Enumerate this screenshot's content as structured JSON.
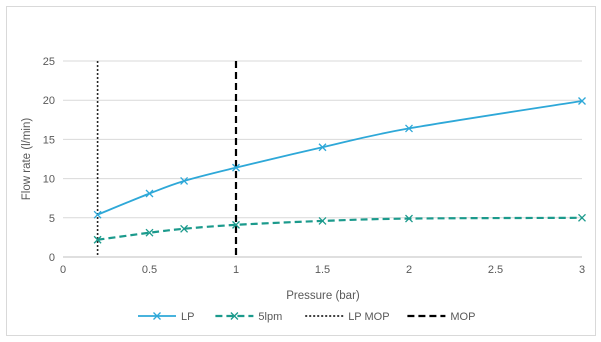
{
  "chart_data": {
    "type": "line",
    "xlabel": "Pressure (bar)",
    "ylabel": "Flow rate (l/min)",
    "xlim": [
      0,
      3
    ],
    "ylim": [
      0,
      25
    ],
    "x_ticks": [
      0,
      0.5,
      1,
      1.5,
      2,
      2.5,
      3
    ],
    "x_tick_labels": [
      "0",
      "0.5",
      "1",
      "1.5",
      "2",
      "2.5",
      "3"
    ],
    "y_ticks": [
      0,
      5,
      10,
      15,
      20,
      25
    ],
    "y_tick_labels": [
      "0",
      "5",
      "10",
      "15",
      "20",
      "25"
    ],
    "grid": "horizontal",
    "legend_position": "bottom",
    "series": [
      {
        "name": "LP",
        "color": "#2ea8d8",
        "line_style": "solid",
        "marker": "x",
        "x": [
          0.2,
          0.5,
          0.7,
          1,
          1.5,
          2,
          3
        ],
        "y": [
          5.4,
          8.1,
          9.7,
          11.4,
          14.0,
          16.4,
          19.9
        ]
      },
      {
        "name": "5lpm",
        "color": "#1b9a8c",
        "line_style": "dashed",
        "marker": "x",
        "x": [
          0.2,
          0.5,
          0.7,
          1,
          1.5,
          2,
          3
        ],
        "y": [
          2.2,
          3.1,
          3.6,
          4.1,
          4.6,
          4.9,
          5.0
        ]
      }
    ],
    "reference_lines": [
      {
        "name": "LP MOP",
        "x": 0.2,
        "color": "#262626",
        "line_style": "dotted"
      },
      {
        "name": "MOP",
        "x": 1,
        "color": "#000000",
        "line_style": "dashed"
      }
    ]
  }
}
